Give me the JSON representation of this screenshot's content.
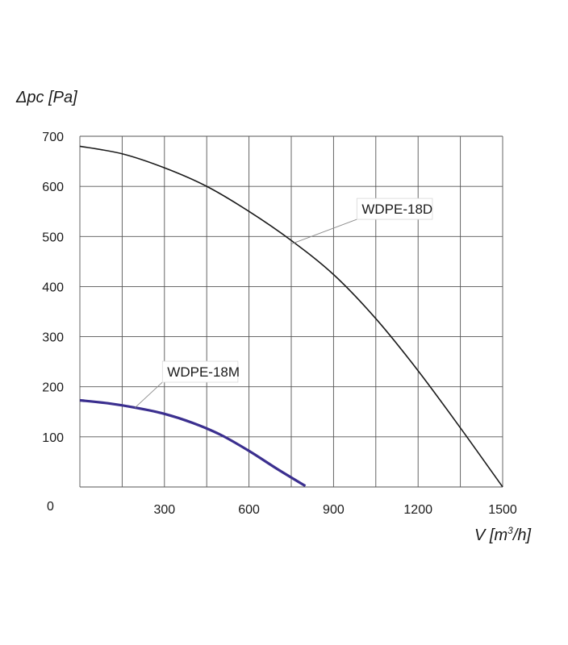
{
  "chart_data": {
    "type": "line",
    "title": "",
    "xlabel": "V [m",
    "xlabel_sup": "3",
    "xlabel_tail": "/h]",
    "ylabel": "Δpc [Pa]",
    "xlim": [
      0,
      1500
    ],
    "ylim": [
      0,
      700
    ],
    "origin_label": "0",
    "x_ticks": [
      {
        "value": 300,
        "label": "300"
      },
      {
        "value": 600,
        "label": "600"
      },
      {
        "value": 900,
        "label": "900"
      },
      {
        "value": 1200,
        "label": "1200"
      },
      {
        "value": 1500,
        "label": "1500"
      }
    ],
    "y_ticks": [
      {
        "value": 100,
        "label": "100"
      },
      {
        "value": 200,
        "label": "200"
      },
      {
        "value": 300,
        "label": "300"
      },
      {
        "value": 400,
        "label": "400"
      },
      {
        "value": 500,
        "label": "500"
      },
      {
        "value": 600,
        "label": "600"
      },
      {
        "value": 700,
        "label": "700"
      }
    ],
    "x_grid": [
      0,
      150,
      300,
      450,
      600,
      750,
      900,
      1050,
      1200,
      1350,
      1500
    ],
    "y_grid": [
      0,
      100,
      200,
      300,
      400,
      500,
      600,
      700
    ],
    "grid": true,
    "series": [
      {
        "name": "WDPE-18D",
        "color": "#1a1a1a",
        "x": [
          0,
          150,
          300,
          450,
          600,
          750,
          900,
          1050,
          1200,
          1350,
          1500
        ],
        "y": [
          680,
          665,
          637,
          600,
          550,
          492,
          424,
          336,
          232,
          118,
          0
        ],
        "label_anchor": [
          750,
          485
        ],
        "label_at": [
          1000,
          547
        ]
      },
      {
        "name": "WDPE-18M",
        "color": "#3b2f8f",
        "x": [
          0,
          100,
          200,
          300,
          400,
          500,
          600,
          700,
          800
        ],
        "y": [
          173,
          167,
          158,
          146,
          128,
          104,
          72,
          36,
          2
        ],
        "label_anchor": [
          195,
          158
        ],
        "label_at": [
          310,
          222
        ]
      }
    ]
  }
}
